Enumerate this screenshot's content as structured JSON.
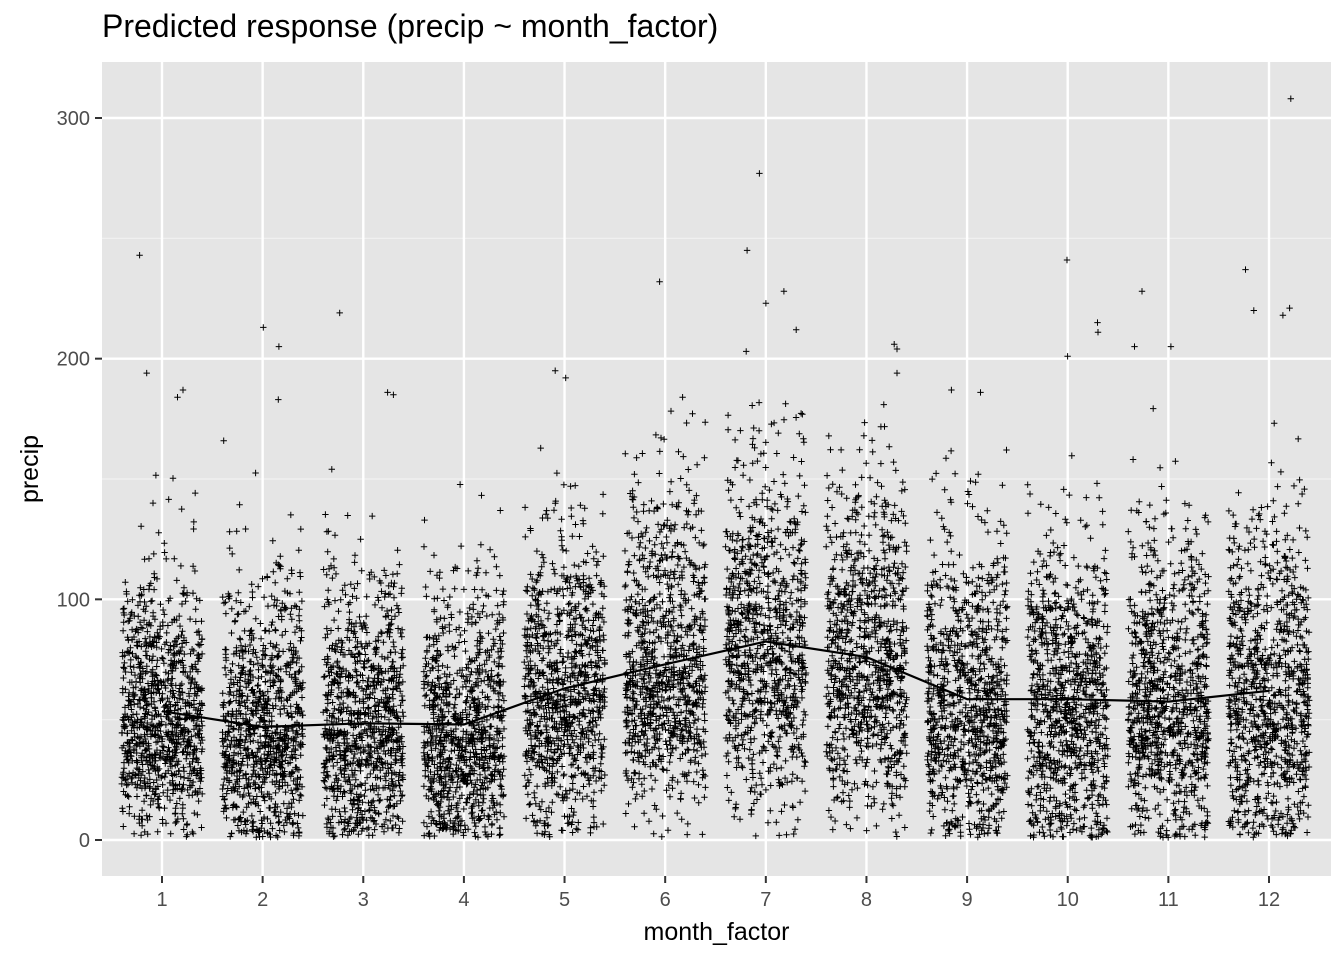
{
  "chart_data": {
    "type": "scatter",
    "title": "Predicted response (precip ~ month_factor)",
    "xlabel": "month_factor",
    "ylabel": "precip",
    "categories": [
      "1",
      "2",
      "3",
      "4",
      "5",
      "6",
      "7",
      "8",
      "9",
      "10",
      "11",
      "12"
    ],
    "ylim": [
      -14,
      323
    ],
    "y_ticks": [
      0,
      100,
      200,
      300
    ],
    "grid": true,
    "marker": "+",
    "jitter": true,
    "points_per_month": 950,
    "series": [
      {
        "name": "observed",
        "kind": "jittered points",
        "summary_by_month": {
          "median": [
            50,
            44,
            46,
            43,
            60,
            70,
            78,
            72,
            55,
            55,
            55,
            57
          ],
          "q1": [
            35,
            28,
            30,
            27,
            42,
            52,
            56,
            52,
            36,
            34,
            35,
            37
          ],
          "q3": [
            70,
            65,
            68,
            64,
            82,
            95,
            105,
            97,
            78,
            78,
            78,
            82
          ],
          "max": [
            243,
            213,
            219,
            157,
            195,
            232,
            277,
            206,
            187,
            241,
            228,
            308
          ]
        },
        "outliers": [
          {
            "x": "1",
            "y": 243
          },
          {
            "x": "1",
            "y": 194
          },
          {
            "x": "1",
            "y": 187
          },
          {
            "x": "1",
            "y": 184
          },
          {
            "x": "2",
            "y": 213
          },
          {
            "x": "2",
            "y": 205
          },
          {
            "x": "2",
            "y": 183
          },
          {
            "x": "3",
            "y": 219
          },
          {
            "x": "3",
            "y": 186
          },
          {
            "x": "3",
            "y": 185
          },
          {
            "x": "5",
            "y": 195
          },
          {
            "x": "5",
            "y": 192
          },
          {
            "x": "6",
            "y": 232
          },
          {
            "x": "6",
            "y": 184
          },
          {
            "x": "7",
            "y": 277
          },
          {
            "x": "7",
            "y": 245
          },
          {
            "x": "7",
            "y": 228
          },
          {
            "x": "7",
            "y": 223
          },
          {
            "x": "7",
            "y": 212
          },
          {
            "x": "7",
            "y": 203
          },
          {
            "x": "8",
            "y": 206
          },
          {
            "x": "8",
            "y": 204
          },
          {
            "x": "8",
            "y": 194
          },
          {
            "x": "9",
            "y": 187
          },
          {
            "x": "9",
            "y": 186
          },
          {
            "x": "10",
            "y": 241
          },
          {
            "x": "10",
            "y": 215
          },
          {
            "x": "10",
            "y": 211
          },
          {
            "x": "10",
            "y": 201
          },
          {
            "x": "11",
            "y": 228
          },
          {
            "x": "11",
            "y": 205
          },
          {
            "x": "11",
            "y": 205
          },
          {
            "x": "12",
            "y": 308
          },
          {
            "x": "12",
            "y": 237
          },
          {
            "x": "12",
            "y": 220
          },
          {
            "x": "12",
            "y": 221
          },
          {
            "x": "12",
            "y": 218
          }
        ]
      },
      {
        "name": "predicted",
        "kind": "line",
        "values": [
          53.5,
          47.0,
          48.5,
          48.0,
          63.0,
          73.0,
          82.5,
          76.0,
          58.5,
          58.5,
          57.5,
          62.0
        ]
      }
    ]
  }
}
